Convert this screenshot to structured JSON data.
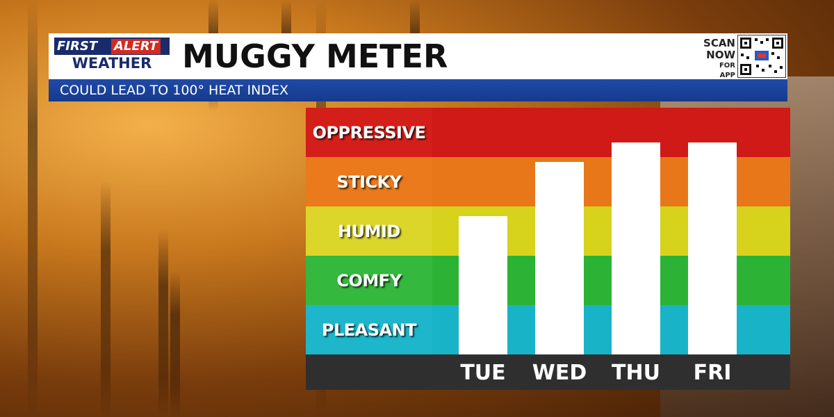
{
  "header": {
    "logo": {
      "first": "FIRST",
      "alert": "ALERT",
      "weather": "WEATHER"
    },
    "title": "MUGGY METER",
    "subtitle": "COULD LEAD TO 100° HEAT INDEX",
    "scan": {
      "line1": "SCAN",
      "line2": "NOW",
      "line3": "FOR APP"
    }
  },
  "colors": {
    "oppressive": "#d41e1a",
    "sticky": "#ea7a1c",
    "humid": "#d7d21c",
    "comfy": "#2cb336",
    "pleasant": "#19b3c8",
    "axis": "#2f2f2f",
    "bar": "#ffffff",
    "header_blue": "#1a2b6b",
    "accent_red": "#d42a1f"
  },
  "chart_data": {
    "type": "bar",
    "title": "MUGGY METER",
    "categories": [
      "TUE",
      "WED",
      "THU",
      "FRI"
    ],
    "levels": [
      "PLEASANT",
      "COMFY",
      "HUMID",
      "STICKY",
      "OPPRESSIVE"
    ],
    "values": [
      2.8,
      3.9,
      4.3,
      4.3
    ],
    "ylim": [
      0,
      5
    ],
    "grid": false,
    "legend": "none"
  }
}
